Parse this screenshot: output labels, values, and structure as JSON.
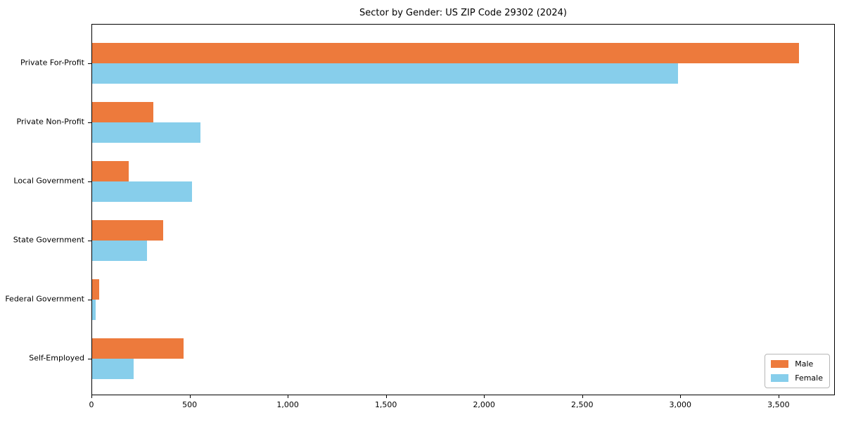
{
  "chart_data": {
    "type": "bar",
    "orientation": "horizontal",
    "title": "Sector by Gender: US ZIP Code 29302 (2024)",
    "categories": [
      "Private For-Profit",
      "Private Non-Profit",
      "Local Government",
      "State Government",
      "Federal Government",
      "Self-Employed"
    ],
    "series": [
      {
        "name": "Male",
        "color": "#ED7A3C",
        "values": [
          3600,
          310,
          185,
          360,
          35,
          465
        ]
      },
      {
        "name": "Female",
        "color": "#87CEEB",
        "values": [
          2985,
          550,
          510,
          280,
          18,
          210
        ]
      }
    ],
    "xlabel": "",
    "ylabel": "",
    "xlim": [
      0,
      3780
    ],
    "xticks": {
      "values": [
        0,
        500,
        1000,
        1500,
        2000,
        2500,
        3000,
        3500
      ],
      "labels": [
        "0",
        "500",
        "1,000",
        "1,500",
        "2,000",
        "2,500",
        "3,000",
        "3,500"
      ]
    },
    "grid": false,
    "legend": {
      "position": "lower right",
      "entries": [
        "Male",
        "Female"
      ]
    }
  }
}
